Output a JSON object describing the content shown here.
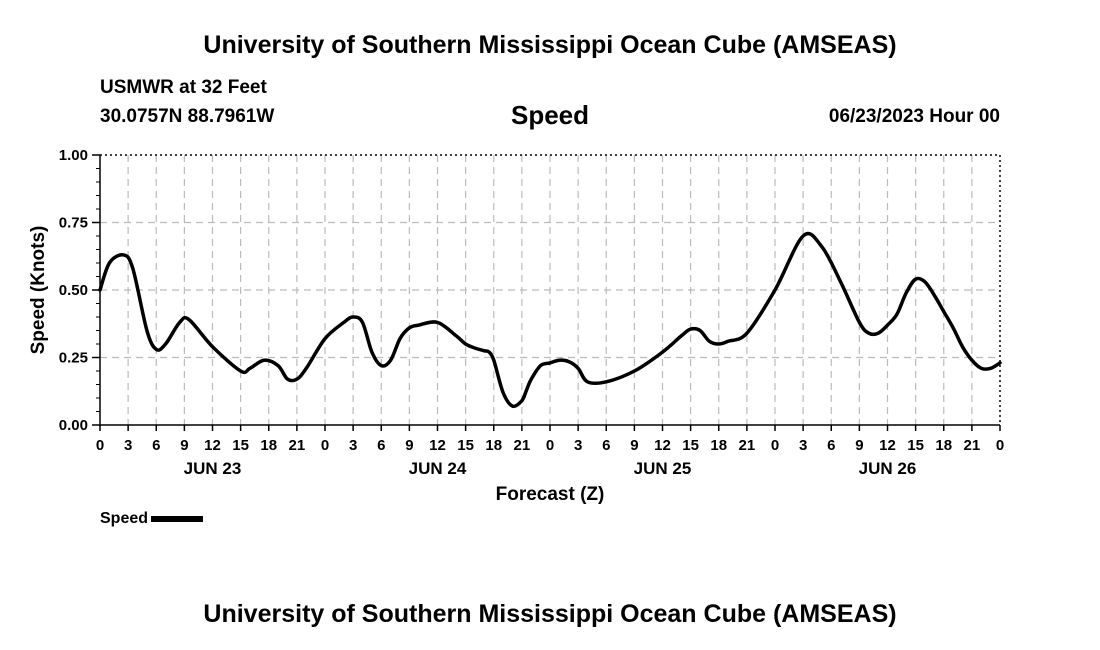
{
  "header": {
    "title_top": "University of Southern Mississippi Ocean Cube (AMSEAS)",
    "station_name": "USMWR at 32 Feet",
    "station_coords": "30.0757N  88.7961W",
    "run_time": "06/23/2023 Hour 00"
  },
  "footer": {
    "title_bottom": "University of Southern Mississippi Ocean Cube (AMSEAS)"
  },
  "legend": {
    "label": "Speed"
  },
  "colors": {
    "line": "#000000",
    "grid": "#bbbbbb",
    "background": "#ffffff"
  },
  "chart_data": {
    "type": "line",
    "title": "Speed",
    "xlabel": "Forecast (Z)",
    "ylabel": "Speed (Knots)",
    "xlim": [
      0,
      96
    ],
    "ylim": [
      0,
      1
    ],
    "grid": true,
    "legend_position": "bottom-left",
    "yticks": [
      0,
      0.25,
      0.5,
      0.75,
      1.0
    ],
    "ytick_labels": [
      "0.00",
      "0.25",
      "0.50",
      "0.75",
      "1.00"
    ],
    "xticks": [
      0,
      3,
      6,
      9,
      12,
      15,
      18,
      21,
      24,
      27,
      30,
      33,
      36,
      39,
      42,
      45,
      48,
      51,
      54,
      57,
      60,
      63,
      66,
      69,
      72,
      75,
      78,
      81,
      84,
      87,
      90,
      93,
      96
    ],
    "xtick_labels": [
      "0",
      "3",
      "6",
      "9",
      "12",
      "15",
      "18",
      "21",
      "0",
      "3",
      "6",
      "9",
      "12",
      "15",
      "18",
      "21",
      "0",
      "3",
      "6",
      "9",
      "12",
      "15",
      "18",
      "21",
      "0",
      "3",
      "6",
      "9",
      "12",
      "15",
      "18",
      "21",
      "0"
    ],
    "day_labels": [
      {
        "label": "JUN 23",
        "x": 12
      },
      {
        "label": "JUN 24",
        "x": 36
      },
      {
        "label": "JUN 25",
        "x": 60
      },
      {
        "label": "JUN 26",
        "x": 84
      }
    ],
    "series": [
      {
        "name": "Speed",
        "x": [
          0,
          1,
          2.5,
          3.5,
          5,
          6,
          7,
          8.5,
          9.5,
          12,
          15,
          16,
          17.5,
          19,
          20,
          21,
          22,
          24,
          26,
          27,
          28,
          29,
          30,
          31,
          32,
          33,
          34,
          36,
          38,
          39,
          40,
          41,
          41.5,
          42,
          43,
          44,
          45,
          45.5,
          46,
          47,
          48,
          49,
          50,
          51,
          52,
          54,
          57,
          60,
          62,
          63,
          64,
          65,
          66,
          67,
          69,
          72,
          75,
          77,
          79,
          81,
          82,
          83,
          84,
          85,
          86,
          87,
          88,
          89,
          90,
          91,
          92,
          93,
          94,
          95,
          96
        ],
        "values": [
          0.5,
          0.6,
          0.63,
          0.58,
          0.35,
          0.28,
          0.3,
          0.38,
          0.39,
          0.29,
          0.2,
          0.21,
          0.24,
          0.22,
          0.17,
          0.17,
          0.21,
          0.32,
          0.38,
          0.4,
          0.38,
          0.27,
          0.22,
          0.24,
          0.32,
          0.36,
          0.37,
          0.38,
          0.33,
          0.3,
          0.285,
          0.275,
          0.27,
          0.24,
          0.12,
          0.07,
          0.09,
          0.13,
          0.17,
          0.22,
          0.23,
          0.24,
          0.235,
          0.21,
          0.16,
          0.16,
          0.2,
          0.27,
          0.33,
          0.355,
          0.35,
          0.31,
          0.3,
          0.31,
          0.34,
          0.5,
          0.7,
          0.66,
          0.53,
          0.38,
          0.34,
          0.34,
          0.37,
          0.41,
          0.49,
          0.54,
          0.53,
          0.48,
          0.42,
          0.36,
          0.29,
          0.24,
          0.21,
          0.21,
          0.23
        ]
      }
    ]
  }
}
